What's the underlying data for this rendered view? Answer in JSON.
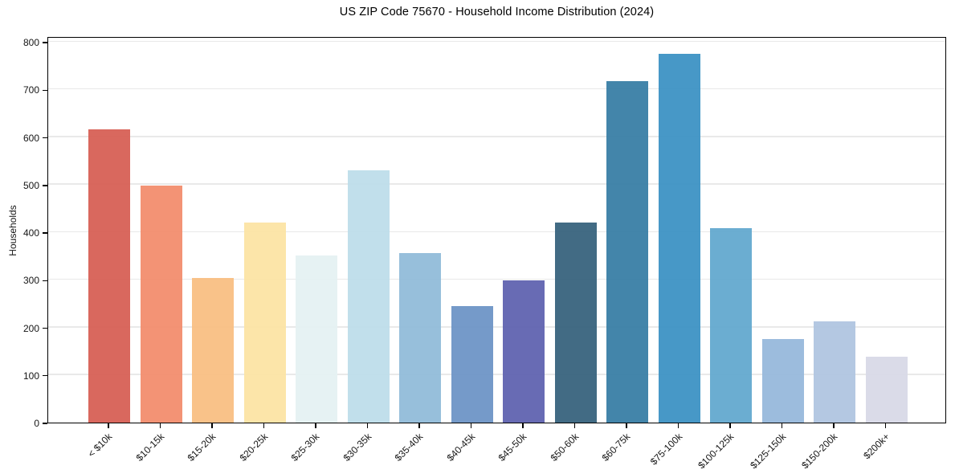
{
  "chart_data": {
    "type": "bar",
    "title": "US ZIP Code 75670 - Household Income Distribution (2024)",
    "xlabel": "",
    "ylabel": "Households",
    "categories": [
      "< $10k",
      "$10-15k",
      "$15-20k",
      "$20-25k",
      "$25-30k",
      "$30-35k",
      "$35-40k",
      "$40-45k",
      "$45-50k",
      "$50-60k",
      "$60-75k",
      "$75-100k",
      "$100-125k",
      "$125-150k",
      "$150-200k",
      "$200k+"
    ],
    "values": [
      616,
      498,
      304,
      420,
      351,
      530,
      357,
      245,
      299,
      420,
      717,
      775,
      409,
      176,
      213,
      139
    ],
    "bar_colors": [
      "#d65c52",
      "#f28b6b",
      "#f9bd80",
      "#fce3a3",
      "#e4f1f2",
      "#bcdde9",
      "#8fbad8",
      "#6a92c5",
      "#5c60ae",
      "#34607b",
      "#357ca4",
      "#3990c3",
      "#60a7cd",
      "#94b7da",
      "#aec4e0",
      "#d7d8e6"
    ],
    "yticks": [
      0,
      100,
      200,
      300,
      400,
      500,
      600,
      700,
      800
    ],
    "ylim": [
      0,
      812
    ],
    "grid": "horizontal",
    "gridline_color": "#e9e9e9",
    "axis_color": "#000000",
    "legend_position": "none"
  }
}
